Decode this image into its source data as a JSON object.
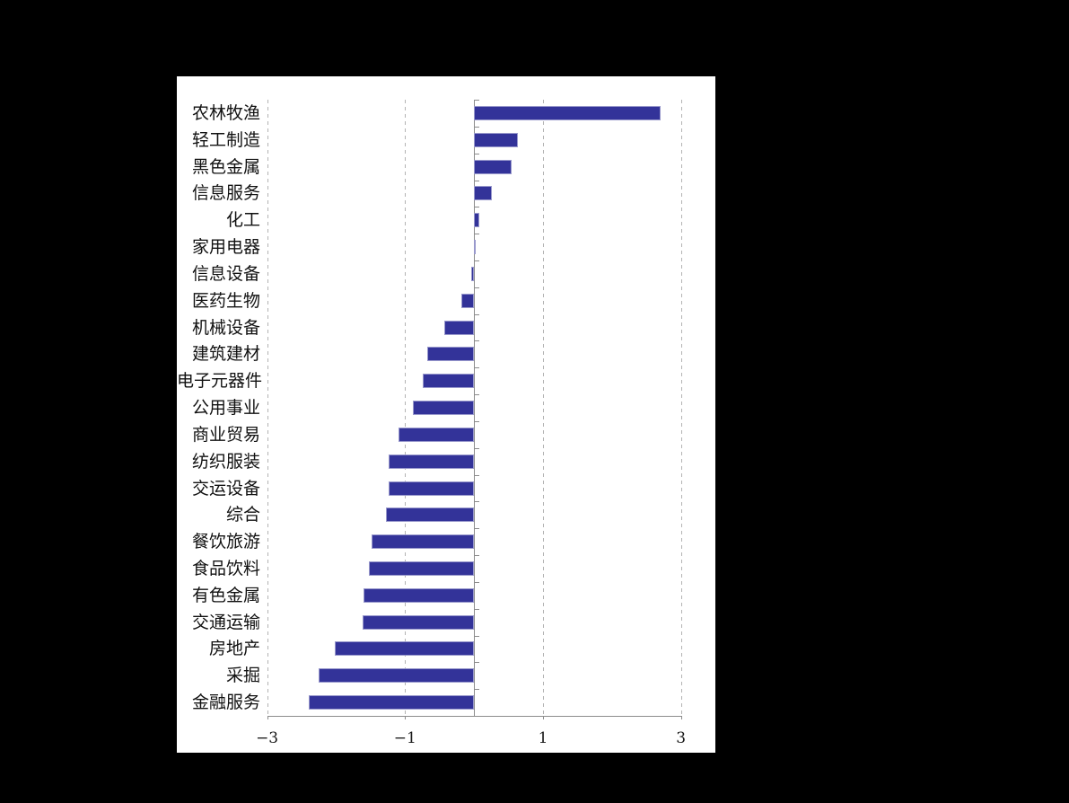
{
  "chart_data": {
    "type": "bar",
    "orientation": "horizontal",
    "title": "",
    "xlabel": "",
    "ylabel": "",
    "categories": [
      "农林牧渔",
      "轻工制造",
      "黑色金属",
      "信息服务",
      "化工",
      "家用电器",
      "信息设备",
      "医药生物",
      "机械设备",
      "建筑建材",
      "电子元器件",
      "公用事业",
      "商业贸易",
      "纺织服装",
      "交运设备",
      "综合",
      "餐饮旅游",
      "食品饮料",
      "有色金属",
      "交通运输",
      "房地产",
      "采掘",
      "金融服务"
    ],
    "values": [
      2.71,
      0.64,
      0.55,
      0.26,
      0.08,
      0.03,
      -0.04,
      -0.18,
      -0.43,
      -0.68,
      -0.74,
      -0.89,
      -1.09,
      -1.24,
      -1.24,
      -1.28,
      -1.48,
      -1.53,
      -1.6,
      -1.61,
      -2.02,
      -2.25,
      -2.4
    ],
    "xlim": [
      -3,
      3
    ],
    "x_ticks": [
      -3,
      -1,
      1,
      3
    ],
    "x_tick_labels": [
      "−3",
      "−1",
      "1",
      "3"
    ],
    "grid": "vertical dashed gridlines at x ticks",
    "legend": "none",
    "colors": {
      "bar_fill": "#333399",
      "bar_border": "#9999cc",
      "plot_background": "#ffffff",
      "page_background": "#000000",
      "axis": "#8c8c8c",
      "gridline": "#b3b3b3",
      "text": "#111111"
    }
  }
}
